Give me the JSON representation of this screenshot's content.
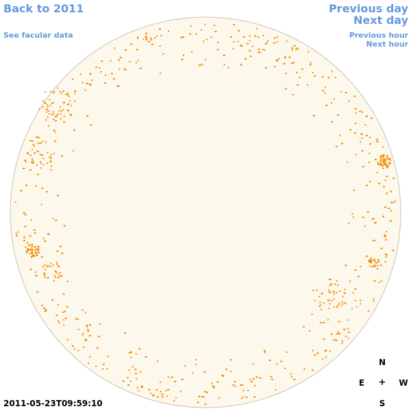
{
  "nav": {
    "back_label": "Back to 2011",
    "facular_label": "See facular data",
    "prev_day_label": "Previous day",
    "next_day_label": "Next day",
    "prev_hour_label": "Previous hour",
    "next_hour_label": "Next hour"
  },
  "timestamp": "2011-05-23T09:59:10",
  "compass": {
    "north": "N",
    "south": "S",
    "east": "E",
    "west": "W",
    "center": "+"
  },
  "colors": {
    "disk_fill": "#fdf8ec",
    "disk_border": "#c8c2b0",
    "spot": "#f08c00",
    "link": "#6699dd"
  }
}
